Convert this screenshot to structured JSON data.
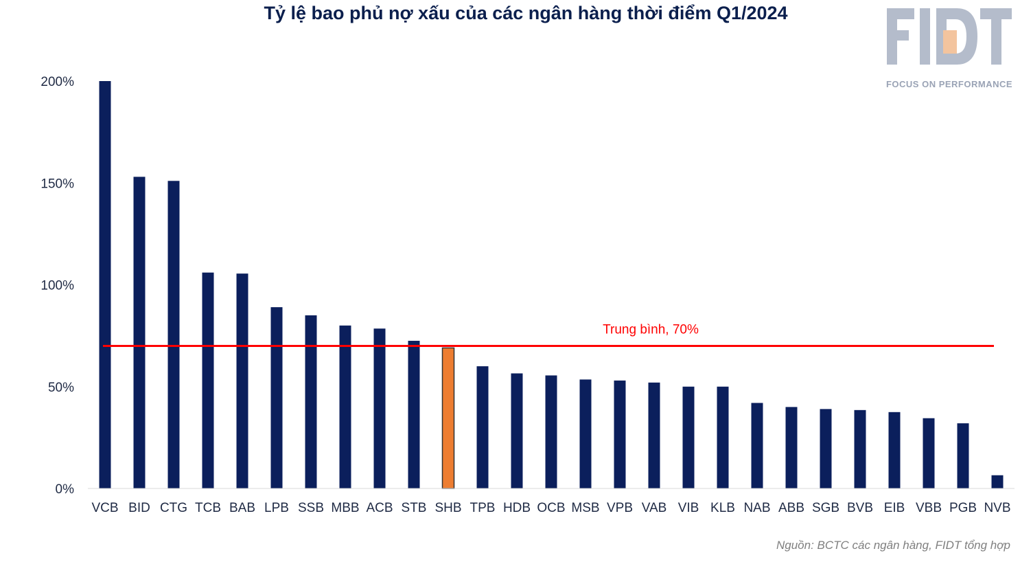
{
  "title": "Tỷ lệ bao phủ nợ xấu của các ngân hàng thời điểm Q1/2024",
  "logo": {
    "text": "FIDT",
    "tagline": "FOCUS ON PERFORMANCE",
    "color": "#b4bccb",
    "accent": "#f3c49e"
  },
  "source": "Nguồn: BCTC các ngân hàng, FIDT tổng hợp",
  "chart_data": {
    "type": "bar",
    "title": "Tỷ lệ bao phủ nợ xấu của các ngân hàng thời điểm Q1/2024",
    "xlabel": "",
    "ylabel": "",
    "ylim": [
      0,
      2
    ],
    "yticks": [
      0,
      0.5,
      1.0,
      1.5,
      2.0
    ],
    "ytick_labels": [
      "0%",
      "50%",
      "100%",
      "150%",
      "200%"
    ],
    "grid": false,
    "legend": "none",
    "categories": [
      "VCB",
      "BID",
      "CTG",
      "TCB",
      "BAB",
      "LPB",
      "SSB",
      "MBB",
      "ACB",
      "STB",
      "SHB",
      "TPB",
      "HDB",
      "OCB",
      "MSB",
      "VPB",
      "VAB",
      "VIB",
      "KLB",
      "NAB",
      "ABB",
      "SGB",
      "BVB",
      "EIB",
      "VBB",
      "PGB",
      "NVB"
    ],
    "values": [
      2.0,
      1.53,
      1.51,
      1.06,
      1.055,
      0.89,
      0.85,
      0.8,
      0.785,
      0.725,
      0.69,
      0.6,
      0.565,
      0.555,
      0.535,
      0.53,
      0.52,
      0.5,
      0.5,
      0.42,
      0.4,
      0.39,
      0.385,
      0.375,
      0.345,
      0.32,
      0.065
    ],
    "bar_color": "#0b1f5c",
    "highlight": {
      "category": "SHB",
      "color": "#ed7d31"
    },
    "reference_line": {
      "value": 0.7,
      "label": "Trung bình, 70%",
      "color": "#ff0000"
    }
  }
}
